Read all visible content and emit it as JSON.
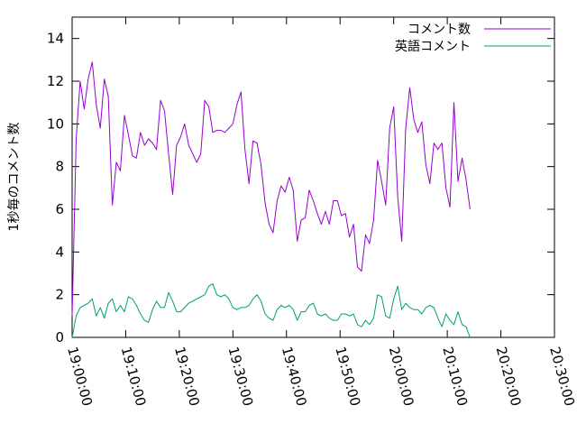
{
  "chart_data": {
    "type": "line",
    "title": "",
    "xlabel": "",
    "ylabel": "1秒毎のコメント数",
    "x_ticks": [
      "19:00:00",
      "19:10:00",
      "19:20:00",
      "19:30:00",
      "19:40:00",
      "19:50:00",
      "20:00:00",
      "20:10:00",
      "20:20:00",
      "20:30:00"
    ],
    "x_range": [
      "19:00:00",
      "20:30:00"
    ],
    "x_interval_seconds": 45,
    "ylim": [
      0,
      15
    ],
    "y_ticks": [
      0,
      2,
      4,
      6,
      8,
      10,
      12,
      14
    ],
    "grid": false,
    "legend_position": "top-right",
    "series": [
      {
        "name": "コメント数",
        "color": "#9400d3",
        "values": [
          1.0,
          9.3,
          12.0,
          10.7,
          12.1,
          12.9,
          10.9,
          9.8,
          12.1,
          11.3,
          6.2,
          8.2,
          7.8,
          10.4,
          9.5,
          8.5,
          8.4,
          9.6,
          9.0,
          9.3,
          9.1,
          8.8,
          11.1,
          10.6,
          8.6,
          6.7,
          9.0,
          9.4,
          10.0,
          9.0,
          8.6,
          8.2,
          8.6,
          11.1,
          10.8,
          9.6,
          9.7,
          9.7,
          9.6,
          9.8,
          10.0,
          10.9,
          11.5,
          8.8,
          7.2,
          9.2,
          9.1,
          8.1,
          6.3,
          5.3,
          4.9,
          6.4,
          7.1,
          6.8,
          7.5,
          6.9,
          4.5,
          5.5,
          5.6,
          6.9,
          6.4,
          5.8,
          5.3,
          5.9,
          5.3,
          6.4,
          6.4,
          5.7,
          5.8,
          4.7,
          5.3,
          3.3,
          3.1,
          4.8,
          4.4,
          5.5,
          8.3,
          7.3,
          6.2,
          9.8,
          10.8,
          6.6,
          4.5,
          9.8,
          11.7,
          10.2,
          9.6,
          10.1,
          8.1,
          7.2,
          9.1,
          8.8,
          9.1,
          7.0,
          6.1,
          11.0,
          7.3,
          8.4,
          7.4,
          6.0
        ],
        "label_bind": "chart_data.series.0.name"
      },
      {
        "name": "英語コメント",
        "color": "#009e73",
        "values": [
          0.0,
          1.0,
          1.4,
          1.5,
          1.6,
          1.8,
          1.0,
          1.4,
          0.9,
          1.6,
          1.8,
          1.2,
          1.5,
          1.2,
          1.9,
          1.8,
          1.5,
          1.1,
          0.8,
          0.7,
          1.3,
          1.7,
          1.4,
          1.4,
          2.1,
          1.7,
          1.2,
          1.2,
          1.4,
          1.6,
          1.7,
          1.8,
          1.9,
          2.0,
          2.4,
          2.5,
          2.0,
          1.9,
          2.0,
          1.8,
          1.4,
          1.3,
          1.4,
          1.4,
          1.5,
          1.8,
          2.0,
          1.7,
          1.1,
          0.9,
          0.8,
          1.3,
          1.5,
          1.4,
          1.5,
          1.3,
          0.8,
          1.2,
          1.2,
          1.5,
          1.6,
          1.1,
          1.0,
          1.1,
          0.9,
          0.8,
          0.8,
          1.1,
          1.1,
          1.0,
          1.1,
          0.6,
          0.5,
          0.8,
          0.6,
          0.9,
          2.0,
          1.9,
          1.0,
          0.9,
          1.8,
          2.4,
          1.3,
          1.6,
          1.4,
          1.3,
          1.3,
          1.1,
          1.4,
          1.5,
          1.4,
          0.9,
          0.5,
          1.1,
          0.8,
          0.6,
          1.2,
          0.6,
          0.5,
          0.0
        ],
        "label_bind": "chart_data.series.1.name"
      }
    ]
  }
}
